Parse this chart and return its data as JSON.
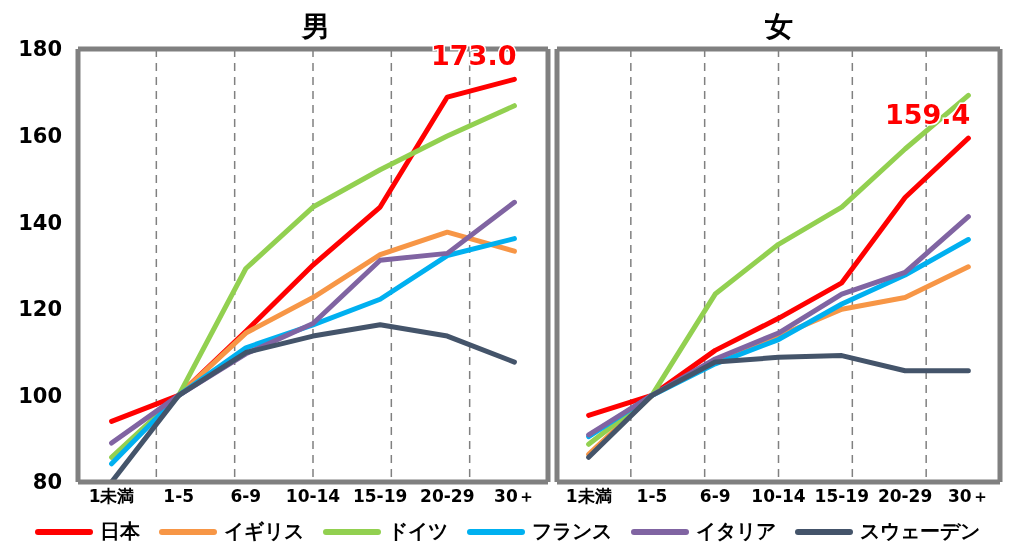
{
  "chart_data": [
    {
      "type": "line",
      "title": "男",
      "categories": [
        "1未満",
        "1-5",
        "6-9",
        "10-14",
        "15-19",
        "20-29",
        "30＋"
      ],
      "ylim": [
        80,
        180
      ],
      "yticks": [
        80,
        100,
        120,
        140,
        160,
        180
      ],
      "grid": true,
      "legend": "bottom",
      "marker": "none",
      "line_style": "solid",
      "series": [
        {
          "name": "日本",
          "color": "#ff0000",
          "values": [
            94.0,
            100,
            114.8,
            130.1,
            143.5,
            168.9,
            173.0
          ],
          "value_labels": [
            null,
            null,
            null,
            null,
            null,
            null,
            "173.0"
          ]
        },
        {
          "name": "イギリス",
          "color": "#f79646",
          "values": [
            null,
            100,
            114.4,
            122.6,
            132.5,
            137.7,
            133.3
          ]
        },
        {
          "name": "ドイツ",
          "color": "#92d050",
          "values": [
            85.7,
            100,
            129.3,
            143.5,
            152.1,
            159.9,
            166.9
          ]
        },
        {
          "name": "フランス",
          "color": "#00b0f0",
          "values": [
            84.2,
            100,
            111.0,
            116.3,
            122.2,
            132.3,
            136.2
          ]
        },
        {
          "name": "イタリア",
          "color": "#8064a2",
          "values": [
            89.0,
            100,
            109.6,
            116.6,
            131.2,
            132.8,
            144.6
          ]
        },
        {
          "name": "スウェーデン",
          "color": "#44546a",
          "values": [
            80,
            100,
            109.9,
            113.7,
            116.3,
            113.7,
            107.7
          ]
        }
      ]
    },
    {
      "type": "line",
      "title": "女",
      "categories": [
        "1未満",
        "1-5",
        "6-9",
        "10-14",
        "15-19",
        "20-29",
        "30＋"
      ],
      "ylim": [
        80,
        180
      ],
      "yticks": [
        80,
        100,
        120,
        140,
        160,
        180
      ],
      "tick_labels": "x",
      "grid": true,
      "marker": "none",
      "line_style": "solid",
      "series": [
        {
          "color": "#ff0000",
          "values": [
            95.4,
            100,
            110.4,
            117.8,
            126.0,
            145.7,
            159.4
          ],
          "value_labels": [
            null,
            null,
            null,
            null,
            null,
            null,
            "159.4"
          ]
        },
        {
          "color": "#f79646",
          "values": [
            86.4,
            100,
            107.7,
            113.7,
            119.9,
            122.6,
            129.7
          ]
        },
        {
          "color": "#92d050",
          "values": [
            88.7,
            100,
            123.4,
            134.9,
            143.5,
            156.9,
            169.3
          ]
        },
        {
          "color": "#00b0f0",
          "values": [
            90.5,
            100,
            107.3,
            112.9,
            121.1,
            127.8,
            136.0
          ]
        },
        {
          "color": "#8064a2",
          "values": [
            90.9,
            100,
            108.4,
            114.4,
            123.4,
            128.4,
            141.3
          ]
        },
        {
          "color": "#44546a",
          "values": [
            85.7,
            100,
            107.7,
            108.8,
            109.2,
            105.7,
            105.7
          ]
        }
      ]
    }
  ]
}
